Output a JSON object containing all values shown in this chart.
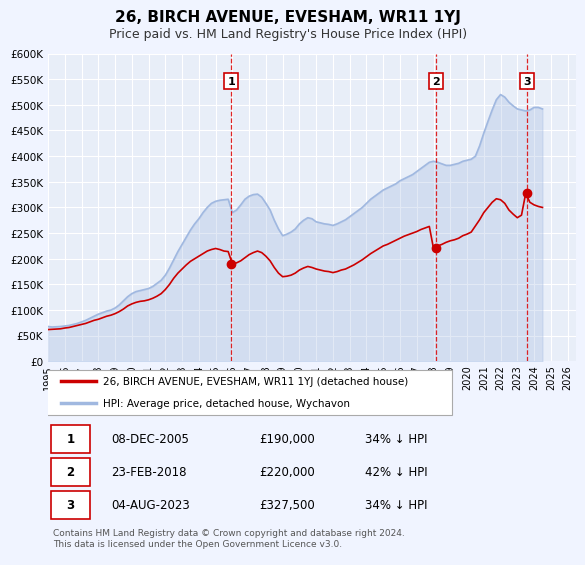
{
  "title": "26, BIRCH AVENUE, EVESHAM, WR11 1YJ",
  "subtitle": "Price paid vs. HM Land Registry's House Price Index (HPI)",
  "bg_color": "#f0f4ff",
  "plot_bg_color": "#e8eef8",
  "hpi_color": "#a0b8e0",
  "price_color": "#cc0000",
  "ylim": [
    0,
    600000
  ],
  "yticks": [
    0,
    50000,
    100000,
    150000,
    200000,
    250000,
    300000,
    350000,
    400000,
    450000,
    500000,
    550000,
    600000
  ],
  "xlim_start": 1995.0,
  "xlim_end": 2026.5,
  "transaction_markers": [
    {
      "label": "1",
      "date_num": 2005.93,
      "price": 190000
    },
    {
      "label": "2",
      "date_num": 2018.15,
      "price": 220000
    },
    {
      "label": "3",
      "date_num": 2023.59,
      "price": 327500
    }
  ],
  "transaction_table": [
    {
      "num": "1",
      "date": "08-DEC-2005",
      "price": "£190,000",
      "pct": "34% ↓ HPI"
    },
    {
      "num": "2",
      "date": "23-FEB-2018",
      "price": "£220,000",
      "pct": "42% ↓ HPI"
    },
    {
      "num": "3",
      "date": "04-AUG-2023",
      "price": "£327,500",
      "pct": "34% ↓ HPI"
    }
  ],
  "legend_entries": [
    "26, BIRCH AVENUE, EVESHAM, WR11 1YJ (detached house)",
    "HPI: Average price, detached house, Wychavon"
  ],
  "footnote": "Contains HM Land Registry data © Crown copyright and database right 2024.\nThis data is licensed under the Open Government Licence v3.0.",
  "hpi_data_x": [
    1995.0,
    1995.25,
    1995.5,
    1995.75,
    1996.0,
    1996.25,
    1996.5,
    1996.75,
    1997.0,
    1997.25,
    1997.5,
    1997.75,
    1998.0,
    1998.25,
    1998.5,
    1998.75,
    1999.0,
    1999.25,
    1999.5,
    1999.75,
    2000.0,
    2000.25,
    2000.5,
    2000.75,
    2001.0,
    2001.25,
    2001.5,
    2001.75,
    2002.0,
    2002.25,
    2002.5,
    2002.75,
    2003.0,
    2003.25,
    2003.5,
    2003.75,
    2004.0,
    2004.25,
    2004.5,
    2004.75,
    2005.0,
    2005.25,
    2005.5,
    2005.75,
    2006.0,
    2006.25,
    2006.5,
    2006.75,
    2007.0,
    2007.25,
    2007.5,
    2007.75,
    2008.0,
    2008.25,
    2008.5,
    2008.75,
    2009.0,
    2009.25,
    2009.5,
    2009.75,
    2010.0,
    2010.25,
    2010.5,
    2010.75,
    2011.0,
    2011.25,
    2011.5,
    2011.75,
    2012.0,
    2012.25,
    2012.5,
    2012.75,
    2013.0,
    2013.25,
    2013.5,
    2013.75,
    2014.0,
    2014.25,
    2014.5,
    2014.75,
    2015.0,
    2015.25,
    2015.5,
    2015.75,
    2016.0,
    2016.25,
    2016.5,
    2016.75,
    2017.0,
    2017.25,
    2017.5,
    2017.75,
    2018.0,
    2018.25,
    2018.5,
    2018.75,
    2019.0,
    2019.25,
    2019.5,
    2019.75,
    2020.0,
    2020.25,
    2020.5,
    2020.75,
    2021.0,
    2021.25,
    2021.5,
    2021.75,
    2022.0,
    2022.25,
    2022.5,
    2022.75,
    2023.0,
    2023.25,
    2023.5,
    2023.75,
    2024.0,
    2024.25,
    2024.5
  ],
  "hpi_data_y": [
    68000,
    67000,
    67500,
    68000,
    69000,
    70000,
    72000,
    74000,
    77000,
    80000,
    84000,
    88000,
    92000,
    95000,
    98000,
    100000,
    104000,
    110000,
    118000,
    126000,
    132000,
    136000,
    138000,
    140000,
    142000,
    146000,
    152000,
    158000,
    168000,
    182000,
    198000,
    214000,
    228000,
    242000,
    256000,
    268000,
    278000,
    290000,
    300000,
    308000,
    312000,
    314000,
    315000,
    316000,
    290000,
    295000,
    305000,
    316000,
    322000,
    325000,
    326000,
    320000,
    308000,
    295000,
    275000,
    258000,
    245000,
    248000,
    252000,
    258000,
    268000,
    275000,
    280000,
    278000,
    272000,
    270000,
    268000,
    267000,
    265000,
    268000,
    272000,
    276000,
    282000,
    288000,
    294000,
    300000,
    308000,
    316000,
    322000,
    328000,
    334000,
    338000,
    342000,
    346000,
    352000,
    356000,
    360000,
    364000,
    370000,
    376000,
    382000,
    388000,
    390000,
    388000,
    385000,
    382000,
    382000,
    384000,
    386000,
    390000,
    392000,
    394000,
    400000,
    420000,
    445000,
    468000,
    490000,
    510000,
    520000,
    515000,
    505000,
    498000,
    492000,
    490000,
    488000,
    490000,
    495000,
    495000,
    492000
  ],
  "price_data_x": [
    1995.0,
    1995.25,
    1995.5,
    1995.75,
    1996.0,
    1996.25,
    1996.5,
    1996.75,
    1997.0,
    1997.25,
    1997.5,
    1997.75,
    1998.0,
    1998.25,
    1998.5,
    1998.75,
    1999.0,
    1999.25,
    1999.5,
    1999.75,
    2000.0,
    2000.25,
    2000.5,
    2000.75,
    2001.0,
    2001.25,
    2001.5,
    2001.75,
    2002.0,
    2002.25,
    2002.5,
    2002.75,
    2003.0,
    2003.25,
    2003.5,
    2003.75,
    2004.0,
    2004.25,
    2004.5,
    2004.75,
    2005.0,
    2005.25,
    2005.5,
    2005.75,
    2006.0,
    2006.25,
    2006.5,
    2006.75,
    2007.0,
    2007.25,
    2007.5,
    2007.75,
    2008.0,
    2008.25,
    2008.5,
    2008.75,
    2009.0,
    2009.25,
    2009.5,
    2009.75,
    2010.0,
    2010.25,
    2010.5,
    2010.75,
    2011.0,
    2011.25,
    2011.5,
    2011.75,
    2012.0,
    2012.25,
    2012.5,
    2012.75,
    2013.0,
    2013.25,
    2013.5,
    2013.75,
    2014.0,
    2014.25,
    2014.5,
    2014.75,
    2015.0,
    2015.25,
    2015.5,
    2015.75,
    2016.0,
    2016.25,
    2016.5,
    2016.75,
    2017.0,
    2017.25,
    2017.5,
    2017.75,
    2018.0,
    2018.25,
    2018.5,
    2018.75,
    2019.0,
    2019.25,
    2019.5,
    2019.75,
    2020.0,
    2020.25,
    2020.5,
    2020.75,
    2021.0,
    2021.25,
    2021.5,
    2021.75,
    2022.0,
    2022.25,
    2022.5,
    2022.75,
    2023.0,
    2023.25,
    2023.5,
    2023.75,
    2024.0,
    2024.25,
    2024.5
  ],
  "price_data_y": [
    62000,
    62500,
    63000,
    63500,
    65000,
    66000,
    68000,
    70000,
    72000,
    74000,
    77000,
    80000,
    82000,
    85000,
    88000,
    90000,
    93000,
    97000,
    102000,
    108000,
    112000,
    115000,
    117000,
    118000,
    120000,
    123000,
    127000,
    132000,
    140000,
    150000,
    162000,
    172000,
    180000,
    188000,
    195000,
    200000,
    205000,
    210000,
    215000,
    218000,
    220000,
    218000,
    215000,
    214000,
    190000,
    192000,
    196000,
    202000,
    208000,
    212000,
    215000,
    212000,
    205000,
    196000,
    183000,
    172000,
    165000,
    166000,
    168000,
    172000,
    178000,
    182000,
    185000,
    183000,
    180000,
    178000,
    176000,
    175000,
    173000,
    175000,
    178000,
    180000,
    184000,
    188000,
    193000,
    198000,
    204000,
    210000,
    215000,
    220000,
    225000,
    228000,
    232000,
    236000,
    240000,
    244000,
    247000,
    250000,
    253000,
    257000,
    260000,
    263000,
    220000,
    225000,
    228000,
    232000,
    235000,
    237000,
    240000,
    245000,
    248000,
    252000,
    264000,
    276000,
    290000,
    300000,
    310000,
    317000,
    315000,
    308000,
    295000,
    287000,
    280000,
    285000,
    327500,
    310000,
    305000,
    302000,
    300000
  ]
}
